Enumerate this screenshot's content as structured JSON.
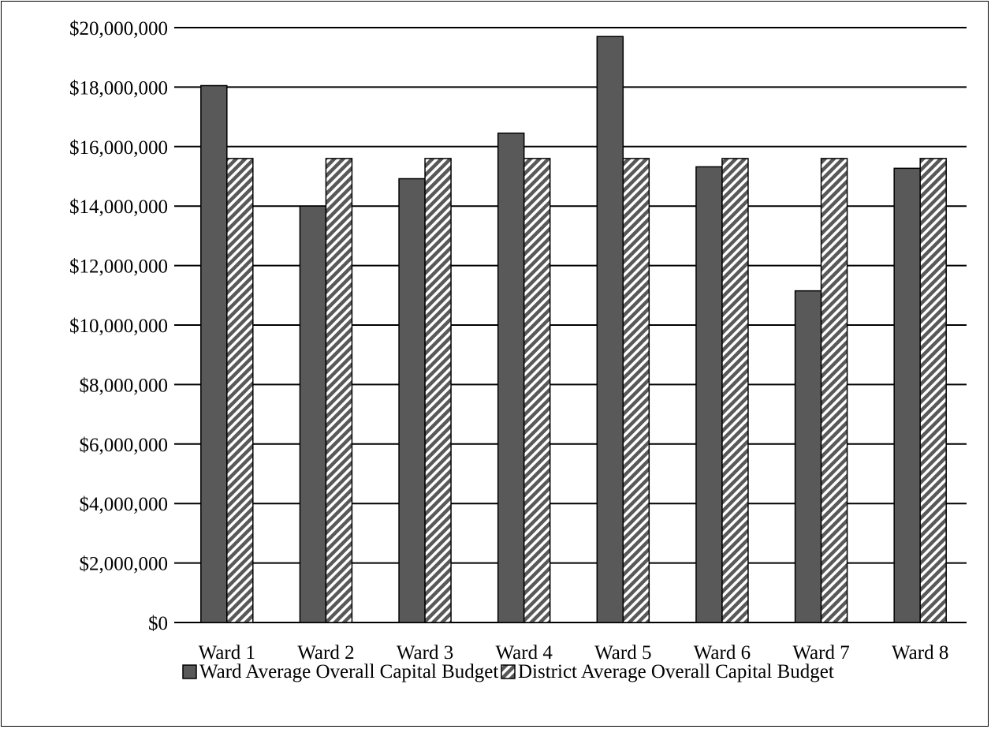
{
  "chart_data": {
    "type": "bar",
    "categories": [
      "Ward 1",
      "Ward 2",
      "Ward 3",
      "Ward 4",
      "Ward 5",
      "Ward 6",
      "Ward 7",
      "Ward 8"
    ],
    "series": [
      {
        "name": "Ward Average Overall Capital Budget",
        "color": "#595959",
        "pattern": "solid",
        "values": [
          18050000,
          14000000,
          14920000,
          16450000,
          19700000,
          15320000,
          11150000,
          15270000
        ]
      },
      {
        "name": "District Average Overall Capital Budget",
        "color": "#595959",
        "pattern": "diagonal-hatch",
        "values": [
          15600000,
          15600000,
          15600000,
          15600000,
          15600000,
          15600000,
          15600000,
          15600000
        ]
      }
    ],
    "y_ticks": [
      "$0",
      "$2,000,000",
      "$4,000,000",
      "$6,000,000",
      "$8,000,000",
      "$10,000,000",
      "$12,000,000",
      "$14,000,000",
      "$16,000,000",
      "$18,000,000",
      "$20,000,000"
    ],
    "ylim": [
      0,
      20000000
    ],
    "y_tick_step": 2000000,
    "grid": true,
    "legend_placement": "bottom",
    "title": "",
    "xlabel": "",
    "ylabel": ""
  }
}
